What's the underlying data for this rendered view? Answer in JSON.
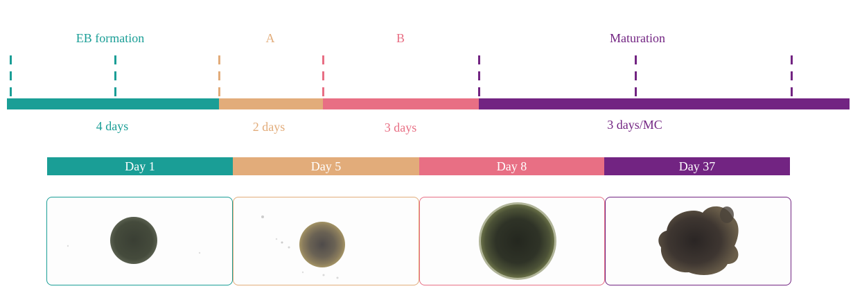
{
  "colors": {
    "eb": "#1a9e96",
    "a": "#e2ac7a",
    "b": "#e86f84",
    "maturation": "#722482"
  },
  "phases": {
    "eb_formation": "EB formation",
    "a": "A",
    "b": "B",
    "maturation": "Maturation"
  },
  "durations": {
    "eb": "4 days",
    "a": "2 days",
    "b": "3 days",
    "maturation": "3 days/MC"
  },
  "days": {
    "d1": "Day 1",
    "d5": "Day 5",
    "d8": "Day 8",
    "d37": "Day 37"
  },
  "images": [
    "eb-spheroid-day-1",
    "eb-spheroid-day-5",
    "spheroid-day-8",
    "organoid-day-37"
  ]
}
